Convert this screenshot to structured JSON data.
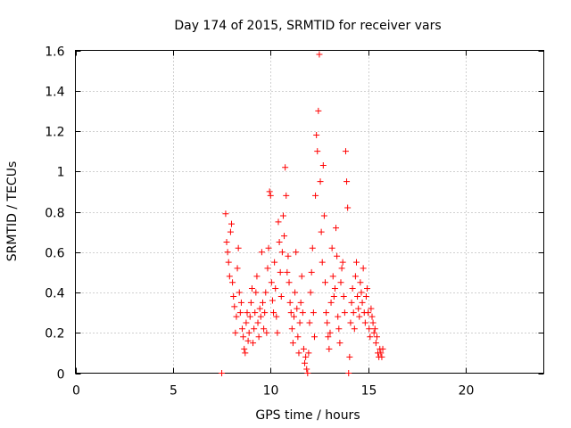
{
  "chart_data": {
    "type": "scatter",
    "title": "Day 174 of 2015, SRMTID for receiver vars",
    "xlabel": "GPS time / hours",
    "ylabel": "SRMTID / TECUs",
    "xlim": [
      0,
      24
    ],
    "ylim": [
      0,
      1.6
    ],
    "grid": true,
    "x_ticks": [
      0,
      5,
      10,
      15,
      20
    ],
    "x_tick_labels": [
      "0",
      "5",
      "10",
      "15",
      "20"
    ],
    "y_ticks": [
      0,
      0.2,
      0.4,
      0.6,
      0.8,
      1.0,
      1.2,
      1.4,
      1.6
    ],
    "y_tick_labels": [
      "0",
      "0.2",
      "0.4",
      "0.6",
      "0.8",
      "1",
      "1.2",
      "1.4",
      "1.6"
    ],
    "series": [
      {
        "name": "SRMTID",
        "color": "#ff0000",
        "marker": "plus",
        "points": [
          [
            7.5,
            0.0
          ],
          [
            7.7,
            0.79
          ],
          [
            7.75,
            0.65
          ],
          [
            7.8,
            0.6
          ],
          [
            7.85,
            0.55
          ],
          [
            7.9,
            0.48
          ],
          [
            7.95,
            0.7
          ],
          [
            8.0,
            0.74
          ],
          [
            8.05,
            0.45
          ],
          [
            8.1,
            0.38
          ],
          [
            8.15,
            0.33
          ],
          [
            8.2,
            0.2
          ],
          [
            8.25,
            0.28
          ],
          [
            8.3,
            0.52
          ],
          [
            8.35,
            0.62
          ],
          [
            8.4,
            0.4
          ],
          [
            8.45,
            0.3
          ],
          [
            8.5,
            0.35
          ],
          [
            8.55,
            0.22
          ],
          [
            8.6,
            0.18
          ],
          [
            8.65,
            0.12
          ],
          [
            8.7,
            0.1
          ],
          [
            8.75,
            0.25
          ],
          [
            8.8,
            0.3
          ],
          [
            8.85,
            0.16
          ],
          [
            8.9,
            0.2
          ],
          [
            8.95,
            0.28
          ],
          [
            9.0,
            0.35
          ],
          [
            9.05,
            0.42
          ],
          [
            9.1,
            0.15
          ],
          [
            9.15,
            0.22
          ],
          [
            9.2,
            0.3
          ],
          [
            9.25,
            0.4
          ],
          [
            9.3,
            0.48
          ],
          [
            9.35,
            0.25
          ],
          [
            9.4,
            0.18
          ],
          [
            9.45,
            0.32
          ],
          [
            9.5,
            0.28
          ],
          [
            9.55,
            0.6
          ],
          [
            9.6,
            0.35
          ],
          [
            9.65,
            0.22
          ],
          [
            9.7,
            0.3
          ],
          [
            9.75,
            0.4
          ],
          [
            9.8,
            0.2
          ],
          [
            9.85,
            0.52
          ],
          [
            9.9,
            0.62
          ],
          [
            9.95,
            0.9
          ],
          [
            10.0,
            0.88
          ],
          [
            10.05,
            0.45
          ],
          [
            10.1,
            0.36
          ],
          [
            10.15,
            0.3
          ],
          [
            10.2,
            0.55
          ],
          [
            10.25,
            0.42
          ],
          [
            10.3,
            0.28
          ],
          [
            10.35,
            0.2
          ],
          [
            10.4,
            0.75
          ],
          [
            10.45,
            0.65
          ],
          [
            10.5,
            0.5
          ],
          [
            10.55,
            0.38
          ],
          [
            10.6,
            0.6
          ],
          [
            10.65,
            0.78
          ],
          [
            10.7,
            0.68
          ],
          [
            10.75,
            1.02
          ],
          [
            10.8,
            0.88
          ],
          [
            10.85,
            0.5
          ],
          [
            10.9,
            0.58
          ],
          [
            10.95,
            0.45
          ],
          [
            11.0,
            0.35
          ],
          [
            11.05,
            0.3
          ],
          [
            11.1,
            0.22
          ],
          [
            11.15,
            0.15
          ],
          [
            11.2,
            0.28
          ],
          [
            11.25,
            0.4
          ],
          [
            11.3,
            0.6
          ],
          [
            11.35,
            0.32
          ],
          [
            11.4,
            0.18
          ],
          [
            11.45,
            0.1
          ],
          [
            11.5,
            0.25
          ],
          [
            11.55,
            0.35
          ],
          [
            11.6,
            0.48
          ],
          [
            11.65,
            0.3
          ],
          [
            11.7,
            0.12
          ],
          [
            11.75,
            0.05
          ],
          [
            11.8,
            0.08
          ],
          [
            11.85,
            0.02
          ],
          [
            11.9,
            0.0
          ],
          [
            11.95,
            0.1
          ],
          [
            12.0,
            0.25
          ],
          [
            12.05,
            0.4
          ],
          [
            12.1,
            0.5
          ],
          [
            12.15,
            0.62
          ],
          [
            12.2,
            0.3
          ],
          [
            12.25,
            0.18
          ],
          [
            12.3,
            0.88
          ],
          [
            12.35,
            1.18
          ],
          [
            12.4,
            1.1
          ],
          [
            12.45,
            1.3
          ],
          [
            12.5,
            1.58
          ],
          [
            12.55,
            0.95
          ],
          [
            12.6,
            0.7
          ],
          [
            12.65,
            0.55
          ],
          [
            12.7,
            1.03
          ],
          [
            12.75,
            0.78
          ],
          [
            12.8,
            0.45
          ],
          [
            12.85,
            0.3
          ],
          [
            12.9,
            0.25
          ],
          [
            12.95,
            0.18
          ],
          [
            13.0,
            0.12
          ],
          [
            13.05,
            0.2
          ],
          [
            13.1,
            0.35
          ],
          [
            13.15,
            0.62
          ],
          [
            13.2,
            0.48
          ],
          [
            13.25,
            0.38
          ],
          [
            13.3,
            0.42
          ],
          [
            13.35,
            0.72
          ],
          [
            13.4,
            0.58
          ],
          [
            13.45,
            0.28
          ],
          [
            13.5,
            0.22
          ],
          [
            13.55,
            0.15
          ],
          [
            13.6,
            0.45
          ],
          [
            13.65,
            0.52
          ],
          [
            13.7,
            0.55
          ],
          [
            13.75,
            0.38
          ],
          [
            13.8,
            0.3
          ],
          [
            13.85,
            1.1
          ],
          [
            13.9,
            0.95
          ],
          [
            13.95,
            0.82
          ],
          [
            14.0,
            0.0
          ],
          [
            14.05,
            0.08
          ],
          [
            14.1,
            0.25
          ],
          [
            14.15,
            0.35
          ],
          [
            14.2,
            0.42
          ],
          [
            14.25,
            0.3
          ],
          [
            14.3,
            0.22
          ],
          [
            14.35,
            0.48
          ],
          [
            14.4,
            0.55
          ],
          [
            14.45,
            0.38
          ],
          [
            14.5,
            0.32
          ],
          [
            14.55,
            0.28
          ],
          [
            14.6,
            0.45
          ],
          [
            14.65,
            0.4
          ],
          [
            14.7,
            0.35
          ],
          [
            14.75,
            0.52
          ],
          [
            14.8,
            0.3
          ],
          [
            14.85,
            0.25
          ],
          [
            14.9,
            0.38
          ],
          [
            14.95,
            0.42
          ],
          [
            15.0,
            0.3
          ],
          [
            15.05,
            0.22
          ],
          [
            15.1,
            0.18
          ],
          [
            15.15,
            0.32
          ],
          [
            15.2,
            0.28
          ],
          [
            15.25,
            0.25
          ],
          [
            15.3,
            0.2
          ],
          [
            15.35,
            0.22
          ],
          [
            15.4,
            0.15
          ],
          [
            15.45,
            0.18
          ],
          [
            15.5,
            0.1
          ],
          [
            15.55,
            0.08
          ],
          [
            15.6,
            0.12
          ],
          [
            15.65,
            0.1
          ],
          [
            15.7,
            0.08
          ],
          [
            15.75,
            0.12
          ]
        ]
      }
    ]
  }
}
